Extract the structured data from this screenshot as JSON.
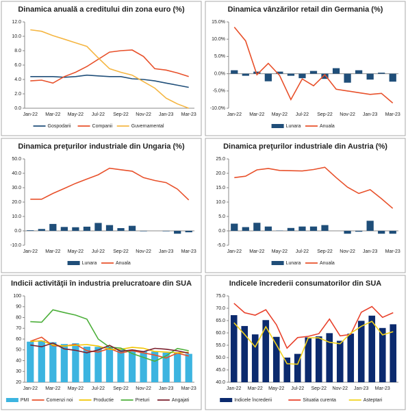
{
  "chart_data": [
    {
      "type": "line",
      "title": "Dinamica anuală a creditului din zona euro (%)",
      "categories": [
        "Jan-22",
        null,
        "Mar-22",
        null,
        "May-22",
        null,
        "Jul-22",
        null,
        "Sep-22",
        null,
        "Nov-22",
        null,
        "Jan-23",
        null,
        "Mar-23"
      ],
      "ylim": [
        0,
        12
      ],
      "yticks": [
        {
          "value": 0,
          "label": "0.0"
        },
        {
          "value": 2,
          "label": "2.0"
        },
        {
          "value": 4,
          "label": "4.0"
        },
        {
          "value": 6,
          "label": "6.0"
        },
        {
          "value": 8,
          "label": "8.0"
        },
        {
          "value": 10,
          "label": "10.0"
        },
        {
          "value": 12,
          "label": "12.0"
        }
      ],
      "grid": false,
      "series": [
        {
          "name": "Gospodarii",
          "type": "line",
          "color": "#1f4e79",
          "values": [
            4.4,
            4.4,
            4.4,
            4.3,
            4.4,
            4.6,
            4.5,
            4.4,
            4.4,
            4.1,
            4.0,
            3.8,
            3.5,
            3.2,
            2.9
          ]
        },
        {
          "name": "Companii",
          "type": "line",
          "color": "#e8502a",
          "values": [
            3.8,
            3.9,
            3.5,
            4.4,
            5.0,
            5.8,
            6.8,
            7.8,
            8.0,
            8.1,
            7.2,
            5.5,
            5.3,
            4.9,
            4.4
          ]
        },
        {
          "name": "Guvernamental",
          "type": "line",
          "color": "#f5b642",
          "values": [
            10.9,
            10.7,
            10.1,
            9.6,
            9.1,
            8.6,
            7.0,
            5.5,
            5.0,
            4.6,
            3.7,
            2.8,
            1.4,
            0.6,
            0.0
          ]
        }
      ]
    },
    {
      "type": "combo",
      "title": "Dinamica vânzărilor retail din Germania (%)",
      "categories": [
        "Jan-22",
        null,
        "Mar-22",
        null,
        "May-22",
        null,
        "Jul-22",
        null,
        "Sep-22",
        null,
        "Nov-22",
        null,
        "Jan-23",
        null,
        "Mar-23"
      ],
      "ylim": [
        -10,
        15
      ],
      "yticks": [
        {
          "value": -10,
          "label": "-10.0%"
        },
        {
          "value": -5,
          "label": "-5.0%"
        },
        {
          "value": 0,
          "label": "0.0%"
        },
        {
          "value": 5,
          "label": "5.0%"
        },
        {
          "value": 10,
          "label": "10.0%"
        },
        {
          "value": 15,
          "label": "15.0%"
        }
      ],
      "grid": false,
      "series": [
        {
          "name": "Lunara",
          "type": "bar",
          "color": "#1f4e79",
          "values": [
            1.0,
            -0.6,
            0.6,
            -2.2,
            0.6,
            -0.6,
            -1.3,
            0.8,
            -1.5,
            1.6,
            -2.6,
            1.0,
            -1.7,
            0.3,
            -2.3
          ]
        },
        {
          "name": "Anuala",
          "type": "line",
          "color": "#e8502a",
          "values": [
            13.5,
            9.5,
            -0.3,
            3.0,
            -0.5,
            -7.5,
            -1.5,
            -3.5,
            -0.3,
            -4.5,
            -5.0,
            -5.5,
            -6.0,
            -5.7,
            -8.5
          ]
        }
      ]
    },
    {
      "type": "combo",
      "title": "Dinamica preţurilor industriale din Ungaria (%)",
      "categories": [
        "Jan-22",
        null,
        "Mar-22",
        null,
        "May-22",
        null,
        "Jul-22",
        null,
        "Sep-22",
        null,
        "Nov-22",
        null,
        "Jan-23",
        null,
        "Mar-23"
      ],
      "ylim": [
        -10,
        50
      ],
      "yticks": [
        {
          "value": -10,
          "label": "-10.0"
        },
        {
          "value": 0,
          "label": "0.0"
        },
        {
          "value": 10,
          "label": "10.0"
        },
        {
          "value": 20,
          "label": "20.0"
        },
        {
          "value": 30,
          "label": "30.0"
        },
        {
          "value": 40,
          "label": "40.0"
        },
        {
          "value": 50,
          "label": "50.0"
        }
      ],
      "grid": false,
      "series": [
        {
          "name": "Lunara",
          "type": "bar",
          "color": "#1f4e79",
          "values": [
            0.4,
            1.3,
            4.8,
            2.7,
            2.5,
            2.9,
            5.5,
            4.0,
            1.9,
            3.5,
            -0.3,
            0.0,
            -0.3,
            -2.0,
            -1.0
          ]
        },
        {
          "name": "Anuala",
          "type": "line",
          "color": "#e8502a",
          "values": [
            22.0,
            22.0,
            26.0,
            29.5,
            33.0,
            36.0,
            39.0,
            43.5,
            42.5,
            41.5,
            37.0,
            35.0,
            33.5,
            29.0,
            21.5
          ]
        }
      ]
    },
    {
      "type": "combo",
      "title": "Dinamica preţurilor industriale din Austria (%)",
      "categories": [
        "Jan-22",
        null,
        "Mar-22",
        null,
        "May-22",
        null,
        "Jul-22",
        null,
        "Sep-22",
        null,
        "Nov-22",
        null,
        "Jan-23",
        null,
        "Mar-23"
      ],
      "ylim": [
        -5,
        25
      ],
      "yticks": [
        {
          "value": -5,
          "label": "-5.0"
        },
        {
          "value": 0,
          "label": "0.0"
        },
        {
          "value": 5,
          "label": "5.0"
        },
        {
          "value": 10,
          "label": "10.0"
        },
        {
          "value": 15,
          "label": "15.0"
        },
        {
          "value": 20,
          "label": "20.0"
        },
        {
          "value": 25,
          "label": "25.0"
        }
      ],
      "grid": false,
      "series": [
        {
          "name": "Lunara",
          "type": "bar",
          "color": "#1f4e79",
          "values": [
            2.5,
            1.3,
            2.8,
            1.5,
            0.1,
            1.0,
            1.5,
            1.5,
            2.0,
            0.0,
            -1.0,
            -0.3,
            3.5,
            -1.0,
            -1.0
          ]
        },
        {
          "name": "Anuala",
          "type": "line",
          "color": "#e8502a",
          "values": [
            18.5,
            19.0,
            21.2,
            21.7,
            21.0,
            20.9,
            20.8,
            21.3,
            22.1,
            18.5,
            15.2,
            13.0,
            14.3,
            11.2,
            7.8
          ]
        }
      ]
    },
    {
      "type": "combo",
      "title": "Indicii activităţii în industria prelucratoare din SUA",
      "categories": [
        "Jan-22",
        null,
        "Mar-22",
        null,
        "May-22",
        null,
        "Jul-22",
        null,
        "Sep-22",
        null,
        "Nov-22",
        null,
        "Jan-23",
        null,
        "Mar-23"
      ],
      "ylim": [
        20,
        100
      ],
      "yticks": [
        20,
        30,
        40,
        50,
        60,
        70,
        80,
        90,
        100
      ],
      "grid": false,
      "series": [
        {
          "name": "PMI",
          "type": "bar",
          "color": "#3cb4e0",
          "values": [
            57.6,
            58.6,
            57.1,
            55.4,
            56.1,
            53.0,
            52.8,
            52.8,
            50.9,
            50.2,
            49.0,
            48.4,
            47.4,
            47.7,
            46.3
          ]
        },
        {
          "name": "Comenzi noi",
          "type": "line",
          "color": "#e8502a",
          "values": [
            57.9,
            61.7,
            53.8,
            53.5,
            55.1,
            49.2,
            48.0,
            51.3,
            47.1,
            49.2,
            47.2,
            45.2,
            42.5,
            47.0,
            44.3
          ]
        },
        {
          "name": "Productie",
          "type": "line",
          "color": "#f2c400",
          "values": [
            57.8,
            58.5,
            54.5,
            53.6,
            54.2,
            54.9,
            53.5,
            50.4,
            50.6,
            52.3,
            51.5,
            48.5,
            48.0,
            47.3,
            47.8
          ]
        },
        {
          "name": "Preturi",
          "type": "line",
          "color": "#4caf3a",
          "values": [
            76.1,
            75.6,
            87.1,
            84.6,
            82.2,
            78.5,
            60.0,
            52.5,
            51.7,
            46.6,
            43.0,
            39.4,
            44.5,
            51.3,
            49.2
          ]
        },
        {
          "name": "Angajati",
          "type": "line",
          "color": "#7a1e2c",
          "values": [
            54.5,
            52.9,
            56.3,
            50.9,
            49.6,
            47.3,
            49.9,
            54.2,
            48.7,
            50.0,
            48.4,
            51.4,
            50.6,
            49.1,
            46.9
          ]
        }
      ]
    },
    {
      "type": "combo",
      "title": "Indicele încrederii consumatorilor din SUA",
      "categories": [
        "Jan-22",
        null,
        "Mar-22",
        null,
        "May-22",
        null,
        "Jul-22",
        null,
        "Sep-22",
        null,
        "Nov-22",
        null,
        "Jan-23",
        null,
        "Mar-23",
        null
      ],
      "ylim": [
        40,
        75
      ],
      "yticks": [
        {
          "value": 40,
          "label": "40.0"
        },
        {
          "value": 45,
          "label": "45.0"
        },
        {
          "value": 50,
          "label": "50.0"
        },
        {
          "value": 55,
          "label": "55.0"
        },
        {
          "value": 60,
          "label": "60.0"
        },
        {
          "value": 65,
          "label": "65.0"
        },
        {
          "value": 70,
          "label": "70.0"
        },
        {
          "value": 75,
          "label": "75.0"
        }
      ],
      "grid": false,
      "series": [
        {
          "name": "Indicele încrederii",
          "type": "bar",
          "color": "#0b2a6e",
          "values": [
            67.2,
            62.8,
            59.4,
            65.2,
            58.4,
            50.0,
            51.5,
            58.2,
            58.6,
            59.9,
            56.8,
            59.7,
            64.9,
            67.0,
            62.0,
            63.5
          ]
        },
        {
          "name": "Situatia curenta",
          "type": "line",
          "color": "#e8402a",
          "values": [
            72.0,
            68.2,
            67.2,
            69.4,
            63.3,
            53.8,
            58.1,
            58.6,
            59.7,
            65.6,
            58.8,
            59.4,
            68.4,
            70.7,
            66.3,
            68.2
          ]
        },
        {
          "name": "Asteptari",
          "type": "line",
          "color": "#f2d21c",
          "values": [
            64.1,
            59.4,
            54.3,
            62.5,
            55.2,
            47.5,
            47.3,
            58.0,
            58.0,
            56.2,
            55.6,
            59.9,
            62.7,
            64.7,
            59.2,
            60.5
          ]
        }
      ]
    }
  ]
}
